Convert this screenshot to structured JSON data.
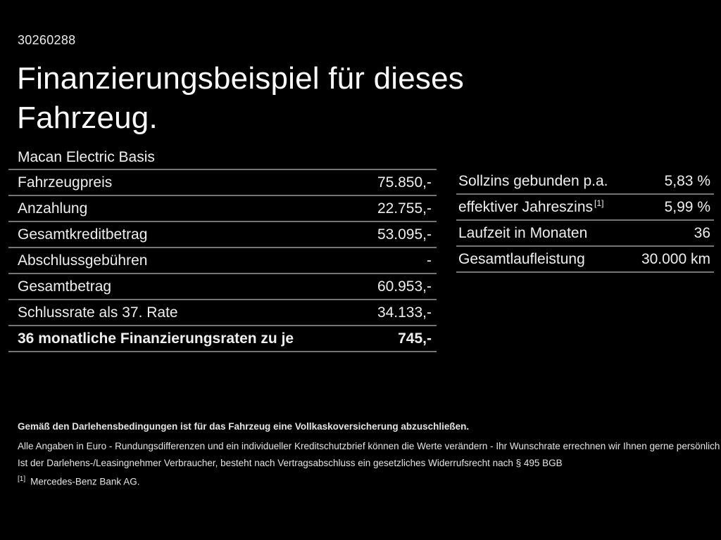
{
  "header": {
    "document_id": "30260288",
    "title_line1": "Finanzierungsbeispiel für dieses",
    "title_line2": "Fahrzeug.",
    "model": "Macan Electric Basis"
  },
  "left_table": {
    "rows": [
      {
        "label": "Fahrzeugpreis",
        "value": "75.850,-"
      },
      {
        "label": "Anzahlung",
        "value": "22.755,-"
      },
      {
        "label": "Gesamtkreditbetrag",
        "value": "53.095,-"
      },
      {
        "label": "Abschlussgebühren",
        "value": "-"
      },
      {
        "label": "Gesamtbetrag",
        "value": "60.953,-"
      },
      {
        "label": "Schlussrate als 37. Rate",
        "value": "34.133,-"
      },
      {
        "label": "36 monatliche Finanzierungsraten zu je",
        "value": "745,-",
        "bold": true
      }
    ]
  },
  "right_table": {
    "rows": [
      {
        "label": "Sollzins gebunden p.a.",
        "value": "5,83 %"
      },
      {
        "label": "effektiver Jahreszins",
        "sup": "[1]",
        "value": "5,99 %"
      },
      {
        "label": "Laufzeit in Monaten",
        "value": "36"
      },
      {
        "label": "Gesamtlaufleistung",
        "value": "30.000 km"
      }
    ]
  },
  "footnotes": {
    "insurance_note": "Gemäß den Darlehensbedingungen ist für das Fahrzeug eine Vollkaskoversicherung abzuschließen.",
    "disclaimer1": "Alle Angaben in Euro - Rundungsdifferenzen und ein individueller Kreditschutzbrief können die Werte verändern - Ihr Wunschrate errechnen wir Ihnen gerne persönlich",
    "disclaimer2": "Ist der Darlehens-/Leasingnehmer Verbraucher, besteht nach Vertragsabschluss ein gesetzliches Widerrufsrecht nach § 495 BGB",
    "footnote_marker": "[1]",
    "footnote_text": "Mercedes-Benz Bank AG."
  },
  "colors": {
    "background": "#000000",
    "text": "#f2f2f2",
    "divider": "#757575"
  }
}
